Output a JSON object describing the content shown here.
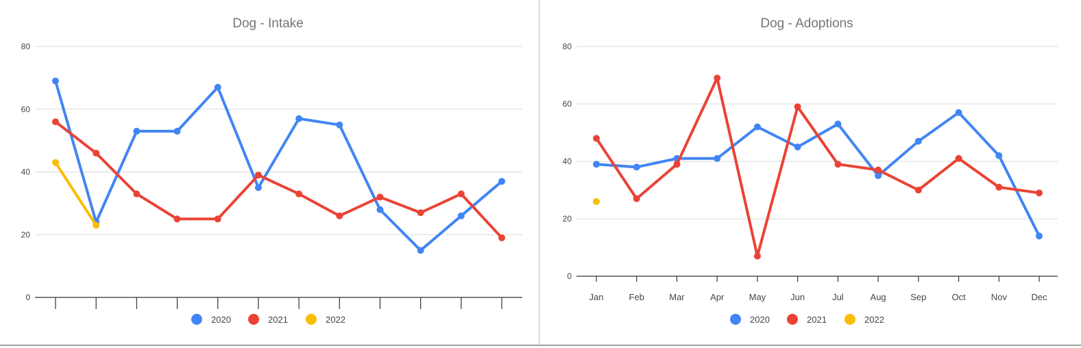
{
  "chart_data": [
    {
      "type": "line",
      "title": "Dog - Intake",
      "xlabel": "",
      "ylabel": "",
      "categories": [
        "",
        "",
        "",
        "",
        "",
        "",
        "",
        "",
        "",
        "",
        "",
        ""
      ],
      "ylim": [
        0,
        80
      ],
      "yticks": [
        0,
        20,
        40,
        60,
        80
      ],
      "grid": true,
      "legend_position": "bottom",
      "series": [
        {
          "name": "2020",
          "color": "#4285f4",
          "values": [
            69,
            24,
            53,
            53,
            67,
            35,
            57,
            55,
            28,
            15,
            26,
            37
          ]
        },
        {
          "name": "2021",
          "color": "#ea4335",
          "values": [
            56,
            46,
            33,
            25,
            25,
            39,
            33,
            26,
            32,
            27,
            33,
            19
          ]
        },
        {
          "name": "2022",
          "color": "#fbbc04",
          "values": [
            43,
            23,
            null,
            null,
            null,
            null,
            null,
            null,
            null,
            null,
            null,
            null
          ]
        }
      ]
    },
    {
      "type": "line",
      "title": "Dog - Adoptions",
      "xlabel": "",
      "ylabel": "",
      "categories": [
        "Jan",
        "Feb",
        "Mar",
        "Apr",
        "May",
        "Jun",
        "Jul",
        "Aug",
        "Sep",
        "Oct",
        "Nov",
        "Dec"
      ],
      "ylim": [
        0,
        80
      ],
      "yticks": [
        0,
        20,
        40,
        60,
        80
      ],
      "grid": true,
      "legend_position": "bottom",
      "series": [
        {
          "name": "2020",
          "color": "#4285f4",
          "values": [
            39,
            38,
            41,
            41,
            52,
            45,
            53,
            35,
            47,
            57,
            42,
            14
          ]
        },
        {
          "name": "2021",
          "color": "#ea4335",
          "values": [
            48,
            27,
            39,
            69,
            7,
            59,
            39,
            37,
            30,
            41,
            31,
            29
          ]
        },
        {
          "name": "2022",
          "color": "#fbbc04",
          "values": [
            26,
            null,
            null,
            null,
            null,
            null,
            null,
            null,
            null,
            null,
            null,
            null
          ]
        }
      ]
    }
  ]
}
